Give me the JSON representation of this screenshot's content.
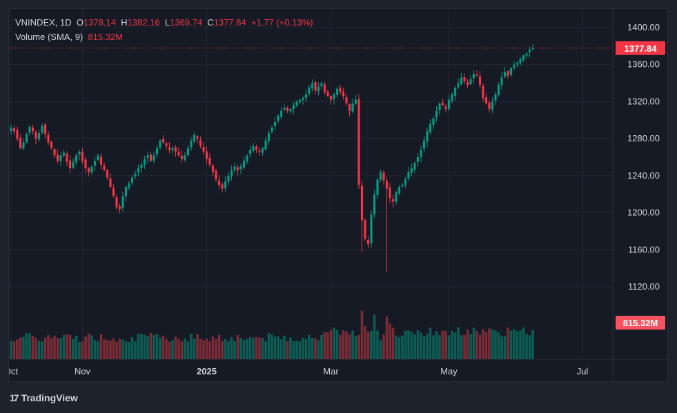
{
  "legend": {
    "symbol": "VNINDEX",
    "interval": "1D",
    "open_label": "O",
    "open": "1378.14",
    "high_label": "H",
    "high": "1382.16",
    "low_label": "L",
    "low": "1369.74",
    "close_label": "C",
    "close": "1377.84",
    "change": "+1.77 (+0.13%)",
    "volume_label": "Volume (SMA, 9)",
    "volume_value": "815.32M"
  },
  "price_tag": "1377.84",
  "volume_tag": "815.32M",
  "brand": "TradingView",
  "colors": {
    "up": "#089981",
    "down": "#f23645",
    "background": "#161a25",
    "grid": "#232733",
    "text": "#d1d4dc"
  },
  "chart_data": {
    "type": "candlestick",
    "y_ticks": [
      "1400.00",
      "1360.00",
      "1320.00",
      "1280.00",
      "1240.00",
      "1200.00",
      "1160.00",
      "1120.00"
    ],
    "ylim": [
      1105,
      1420
    ],
    "x_ticks": [
      {
        "label": "Oct",
        "index": 0
      },
      {
        "label": "Nov",
        "index": 23
      },
      {
        "label": "2025",
        "index": 63
      },
      {
        "label": "Mar",
        "index": 103
      },
      {
        "label": "May",
        "index": 141
      },
      {
        "label": "Jul",
        "index": 184
      }
    ],
    "closes": [
      1292,
      1288,
      1280,
      1270,
      1276,
      1285,
      1293,
      1288,
      1280,
      1286,
      1294,
      1285,
      1276,
      1270,
      1262,
      1256,
      1262,
      1265,
      1255,
      1248,
      1255,
      1262,
      1266,
      1256,
      1248,
      1244,
      1250,
      1256,
      1262,
      1252,
      1246,
      1238,
      1228,
      1218,
      1206,
      1204,
      1218,
      1228,
      1232,
      1238,
      1242,
      1248,
      1252,
      1258,
      1262,
      1256,
      1262,
      1270,
      1278,
      1276,
      1272,
      1268,
      1270,
      1266,
      1262,
      1258,
      1262,
      1270,
      1278,
      1284,
      1280,
      1272,
      1266,
      1258,
      1252,
      1244,
      1236,
      1230,
      1226,
      1234,
      1240,
      1246,
      1250,
      1246,
      1250,
      1256,
      1262,
      1268,
      1272,
      1268,
      1266,
      1270,
      1278,
      1286,
      1292,
      1298,
      1305,
      1310,
      1313,
      1310,
      1312,
      1316,
      1320,
      1322,
      1324,
      1328,
      1335,
      1340,
      1332,
      1336,
      1340,
      1330,
      1326,
      1322,
      1328,
      1334,
      1330,
      1326,
      1318,
      1310,
      1318,
      1322,
      1230,
      1192,
      1172,
      1166,
      1198,
      1220,
      1236,
      1244,
      1235,
      1226,
      1216,
      1212,
      1222,
      1228,
      1230,
      1236,
      1244,
      1248,
      1254,
      1260,
      1268,
      1278,
      1288,
      1296,
      1302,
      1310,
      1318,
      1316,
      1312,
      1322,
      1328,
      1335,
      1340,
      1346,
      1342,
      1338,
      1344,
      1350,
      1348,
      1338,
      1324,
      1318,
      1312,
      1320,
      1328,
      1338,
      1346,
      1352,
      1348,
      1356,
      1360,
      1362,
      1366,
      1370,
      1372,
      1376,
      1377.84
    ],
    "volume_ylim": [
      0,
      260
    ],
    "volume_note": "volume in millions of shares, estimated"
  }
}
